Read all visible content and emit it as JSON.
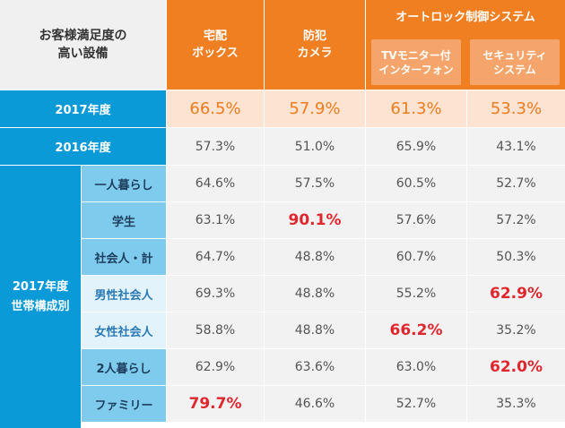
{
  "header": {
    "title": "お客様満足度の\n高い設備",
    "columns": [
      "宅配\nボックス",
      "防犯\nカメラ"
    ],
    "group_title": "オートロック制御システム",
    "group_columns": [
      "TVモニター付\nインターフォン",
      "セキュリティ\nシステム"
    ]
  },
  "rows": [
    {
      "label": "2017年度",
      "values": [
        "66.5%",
        "57.9%",
        "61.3%",
        "53.3%"
      ]
    },
    {
      "label": "2016年度",
      "values": [
        "57.3%",
        "51.0%",
        "65.9%",
        "43.1%"
      ]
    }
  ],
  "group": {
    "label": "2017年度\n世帯構成別",
    "rows": [
      {
        "label": "一人暮らし",
        "values": [
          "64.6%",
          "57.5%",
          "60.5%",
          "52.7%"
        ],
        "highlight": [
          false,
          false,
          false,
          false
        ]
      },
      {
        "label": "学生",
        "values": [
          "63.1%",
          "90.1%",
          "57.6%",
          "57.2%"
        ],
        "highlight": [
          false,
          true,
          false,
          false
        ]
      },
      {
        "label": "社会人・計",
        "values": [
          "64.7%",
          "48.8%",
          "60.7%",
          "50.3%"
        ],
        "highlight": [
          false,
          false,
          false,
          false
        ]
      },
      {
        "label": "男性社会人",
        "values": [
          "69.3%",
          "48.8%",
          "55.2%",
          "62.9%"
        ],
        "highlight": [
          false,
          false,
          false,
          true
        ]
      },
      {
        "label": "女性社会人",
        "values": [
          "58.8%",
          "48.8%",
          "66.2%",
          "35.2%"
        ],
        "highlight": [
          false,
          false,
          true,
          false
        ]
      },
      {
        "label": "2人暮らし",
        "values": [
          "62.9%",
          "63.6%",
          "63.0%",
          "62.0%"
        ],
        "highlight": [
          false,
          false,
          false,
          true
        ]
      },
      {
        "label": "ファミリー",
        "values": [
          "79.7%",
          "46.6%",
          "52.7%",
          "35.3%"
        ],
        "highlight": [
          true,
          false,
          false,
          false
        ]
      }
    ]
  },
  "colors": {
    "orange": "#f07f22",
    "orange_light": "#f5a56b",
    "blue": "#0b9ad8",
    "light_blue": "#7fcbed",
    "pale_blue": "#e3f3fb",
    "highlight_red": "#e0262e"
  }
}
